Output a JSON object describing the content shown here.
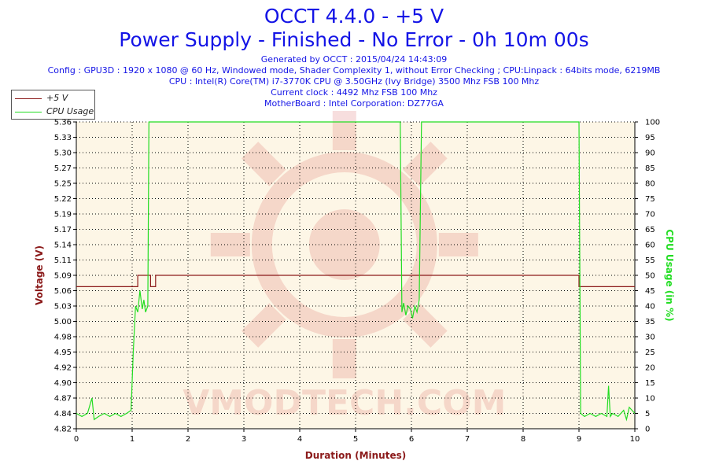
{
  "header": {
    "title": "OCCT 4.4.0 - +5 V",
    "subtitle": "Power Supply - Finished - No Error - 0h 10m 00s",
    "info_lines": [
      "Generated by OCCT : 2015/04/24 14:43:09",
      "Config : GPU3D : 1920 x 1080 @ 60 Hz, Windowed mode, Shader Complexity 1, without Error Checking ; CPU:Linpack : 64bits mode, 6219MB",
      "CPU : Intel(R) Core(TM) i7-3770K CPU @ 3.50GHz (Ivy Bridge) 3500 Mhz FSB 100 Mhz",
      "Current clock : 4492 Mhz FSB 100 Mhz",
      "MotherBoard : Intel Corporation: DZ77GA"
    ]
  },
  "watermark": "VMODTECH.COM",
  "colors": {
    "title": "#1414e6",
    "voltage": "#8b1a1a",
    "cpu": "#22dd22",
    "plot_bg": "#fdf6e6",
    "grid": "#000000"
  },
  "chart_data": {
    "type": "line",
    "xlabel": "Duration (Minutes)",
    "ylabel_left": "Voltage (V)",
    "ylabel_right": "CPU Usage (in %)",
    "xlim": [
      0,
      10
    ],
    "ylim_left": [
      4.82,
      5.36
    ],
    "ylim_right": [
      0,
      100
    ],
    "x_ticks": [
      "0",
      "1",
      "2",
      "3",
      "4",
      "5",
      "6",
      "7",
      "8",
      "9",
      "10"
    ],
    "y_ticks_left": [
      "5.36",
      "5.33",
      "5.30",
      "5.27",
      "5.25",
      "5.22",
      "5.19",
      "5.17",
      "5.14",
      "5.11",
      "5.09",
      "5.06",
      "5.03",
      "5.00",
      "4.98",
      "4.95",
      "4.92",
      "4.90",
      "4.87",
      "4.84",
      "4.82"
    ],
    "y_ticks_right": [
      "100",
      "95",
      "90",
      "85",
      "80",
      "75",
      "70",
      "65",
      "60",
      "55",
      "50",
      "45",
      "40",
      "35",
      "30",
      "25",
      "20",
      "15",
      "10",
      "5",
      "0"
    ],
    "grid": true,
    "legend_position": "top-left",
    "series": [
      {
        "name": "+5 V",
        "axis": "left",
        "x": [
          0,
          1.1,
          1.1,
          1.33,
          1.33,
          1.42,
          1.42,
          5.75,
          5.75,
          9.0,
          9.0,
          10.0
        ],
        "y": [
          5.07,
          5.07,
          5.09,
          5.09,
          5.07,
          5.07,
          5.09,
          5.09,
          5.09,
          5.09,
          5.07,
          5.07
        ]
      },
      {
        "name": "CPU Usage",
        "axis": "right",
        "x": [
          0,
          0.1,
          0.2,
          0.28,
          0.32,
          0.4,
          0.5,
          0.6,
          0.7,
          0.8,
          0.9,
          0.98,
          1.02,
          1.06,
          1.1,
          1.14,
          1.18,
          1.21,
          1.24,
          1.28,
          1.3,
          5.8,
          5.83,
          5.86,
          5.9,
          5.94,
          5.98,
          6.02,
          6.06,
          6.1,
          6.14,
          6.18,
          9.0,
          9.03,
          9.1,
          9.2,
          9.3,
          9.4,
          9.5,
          9.53,
          9.56,
          9.6,
          9.7,
          9.8,
          9.85,
          9.9,
          10.0
        ],
        "y": [
          5,
          4,
          5,
          10,
          3,
          4,
          5,
          4,
          5,
          4,
          5,
          6,
          25,
          40,
          38,
          45,
          39,
          42,
          38,
          40,
          100,
          100,
          38,
          41,
          37,
          40,
          39,
          36,
          40,
          38,
          42,
          100,
          100,
          5,
          4,
          5,
          4,
          5,
          4,
          14,
          4,
          5,
          4,
          6,
          3,
          7,
          5
        ]
      }
    ]
  }
}
